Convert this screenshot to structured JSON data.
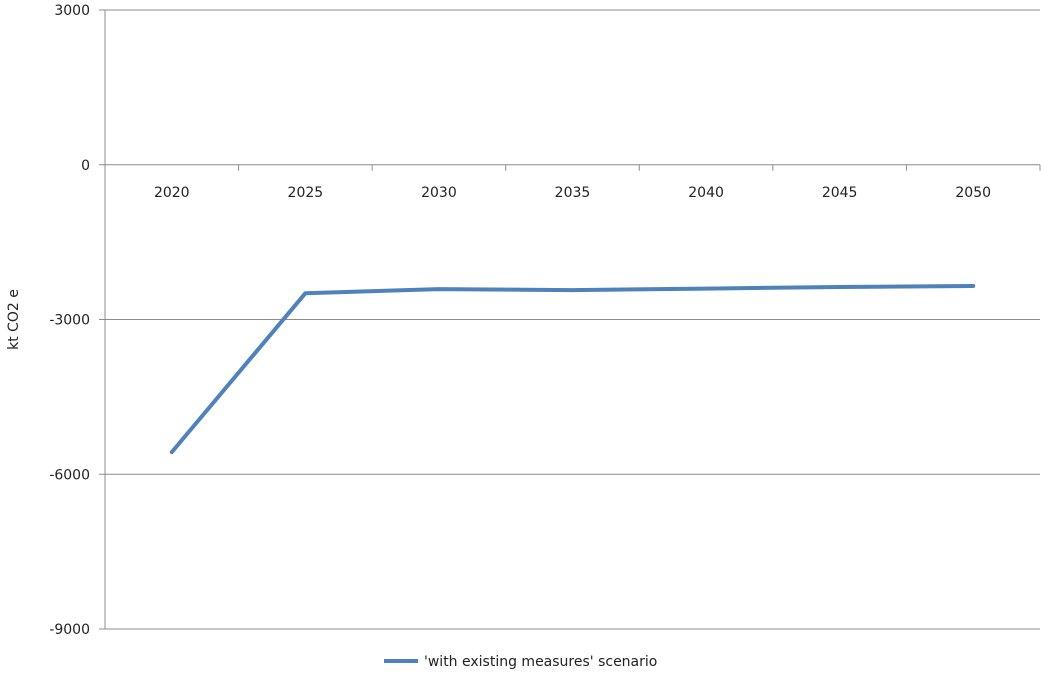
{
  "chart_data": {
    "type": "line",
    "title": "",
    "xlabel": "",
    "ylabel": "kt CO2 e",
    "categories": [
      "2020",
      "2025",
      "2030",
      "2035",
      "2040",
      "2045",
      "2050"
    ],
    "y_ticks": [
      3000,
      0,
      -3000,
      -6000,
      -9000
    ],
    "y_tick_labels": [
      "3000",
      "0",
      "-3000",
      "-6000",
      "-9000"
    ],
    "ylim": [
      -9000,
      3000
    ],
    "grid": true,
    "legend_position": "bottom",
    "series": [
      {
        "name": "'with existing measures' scenario",
        "color": "#4f81bd",
        "values": [
          -5570,
          -2490,
          -2410,
          -2430,
          -2400,
          -2370,
          -2350
        ]
      }
    ]
  }
}
